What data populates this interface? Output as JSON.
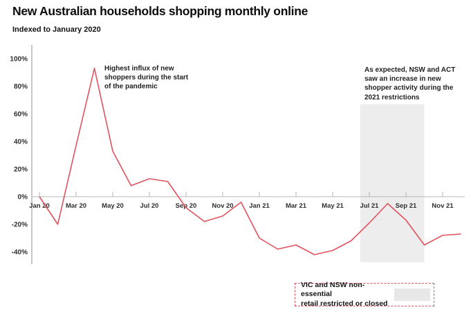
{
  "header": {
    "title": "New Australian households shopping monthly online",
    "subtitle": "Indexed to January 2020"
  },
  "colors": {
    "accent_red": "#e0515c",
    "band_gray": "#ededed",
    "swatch_gray": "#e8e8e8",
    "axis_gray": "#b5b5b5",
    "text_dark": "#1a1a1a"
  },
  "chart_data": {
    "type": "line",
    "title": "New Australian households shopping monthly online",
    "subtitle": "Indexed to January 2020",
    "unit": "%",
    "grid": false,
    "x": [
      "Jan 20",
      "Feb 20",
      "Mar 20",
      "Apr 20",
      "May 20",
      "Jun 20",
      "Jul 20",
      "Aug 20",
      "Sep 20",
      "Oct 20",
      "Nov 20",
      "Dec 20",
      "Jan 21",
      "Feb 21",
      "Mar 21",
      "Apr 21",
      "May 21",
      "Jun 21",
      "Jul 21",
      "Aug 21",
      "Sep 21",
      "Oct 21",
      "Nov 21",
      "Dec 21"
    ],
    "values": [
      0,
      -20,
      37,
      93,
      33,
      8,
      13,
      11,
      -8,
      -18,
      -14,
      -4,
      -30,
      -38,
      -35,
      -42,
      -39,
      -32,
      -19,
      -5,
      -17,
      -35,
      -28,
      -27
    ],
    "x_tick_labels": [
      "Jan 20",
      "Mar 20",
      "May 20",
      "Jul 20",
      "Sep 20",
      "Nov 20",
      "Jan 21",
      "Mar 21",
      "May 21",
      "Jul 21",
      "Sep 21",
      "Nov 21"
    ],
    "yticks": [
      100,
      80,
      60,
      40,
      20,
      0,
      -20,
      -40
    ],
    "ylim": [
      -48,
      109
    ],
    "band": {
      "start": "Jun 21",
      "end": "Oct 21",
      "top_value": 67,
      "bottom_value": -47.5
    },
    "annotations": [
      {
        "text": "Highest influx of new\nshoppers during the start\nof the pandemic"
      },
      {
        "text": "As expected, NSW and ACT\nsaw an increase in new\nshopper activity during the\n2021 restrictions"
      }
    ]
  },
  "legend": {
    "label": "VIC and NSW non-essential\nretail restricted or closed"
  }
}
